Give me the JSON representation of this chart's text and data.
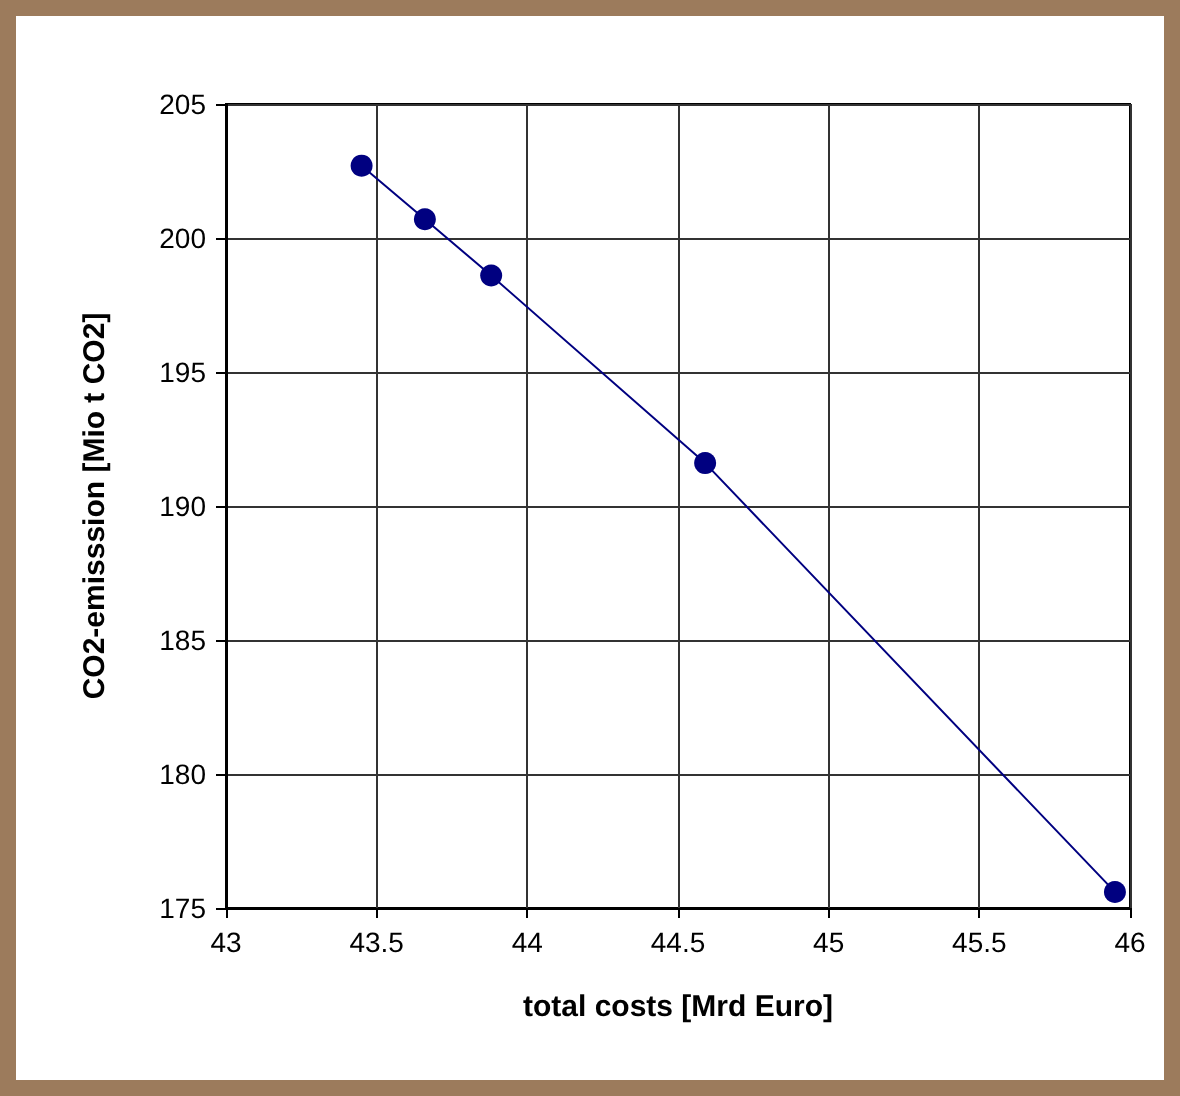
{
  "chart_data": {
    "type": "line",
    "xlabel": "total costs [Mrd Euro]",
    "ylabel": "CO2-emisssion [Mio t CO2]",
    "x": [
      43.45,
      43.66,
      43.88,
      44.59,
      45.95
    ],
    "series": [
      {
        "color": "#000080",
        "values": [
          202.7,
          200.7,
          198.6,
          191.6,
          175.6
        ]
      }
    ],
    "xlim": [
      43,
      46
    ],
    "xticks": [
      43,
      43.5,
      44,
      44.5,
      45,
      45.5,
      46
    ],
    "ylim": [
      175,
      205
    ],
    "yticks": [
      175,
      180,
      185,
      190,
      195,
      200,
      205
    ],
    "grid": true,
    "marker": "circle",
    "line_style": "solid"
  }
}
